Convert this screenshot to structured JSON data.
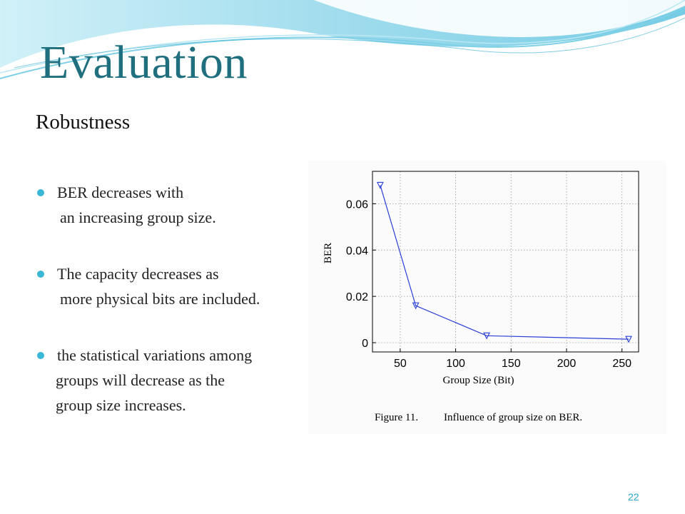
{
  "slide": {
    "title": "Evaluation",
    "subtitle": "Robustness",
    "page_number": "22",
    "accent_color": "#3ab6d6",
    "title_color": "#1f6f7f",
    "bullets": [
      {
        "lines": [
          "BER decreases with",
          "an increasing group size."
        ]
      },
      {
        "lines": [
          "The capacity decreases as",
          "more physical bits are included."
        ]
      },
      {
        "lines": [
          "the statistical variations among",
          "groups will decrease as the",
          "group size increases."
        ]
      }
    ]
  },
  "chart_data": {
    "type": "line",
    "xlabel": "Group Size (Bit)",
    "ylabel": "BER",
    "caption_number": "Figure 11.",
    "caption_text": "Influence of group size on BER.",
    "xlim": [
      25,
      265
    ],
    "ylim": [
      -0.004,
      0.074
    ],
    "xticks": [
      50,
      100,
      150,
      200,
      250
    ],
    "yticks": [
      0,
      0.02,
      0.04,
      0.06
    ],
    "xtick_labels": [
      "50",
      "100",
      "150",
      "200",
      "250"
    ],
    "ytick_labels": [
      "0",
      "0.02",
      "0.04",
      "0.06"
    ],
    "grid": true,
    "marker": "triangle-down",
    "line_color": "#2a3fd6",
    "series": [
      {
        "x": [
          32,
          64,
          128,
          256
        ],
        "y": [
          0.068,
          0.016,
          0.003,
          0.0015
        ]
      }
    ]
  }
}
